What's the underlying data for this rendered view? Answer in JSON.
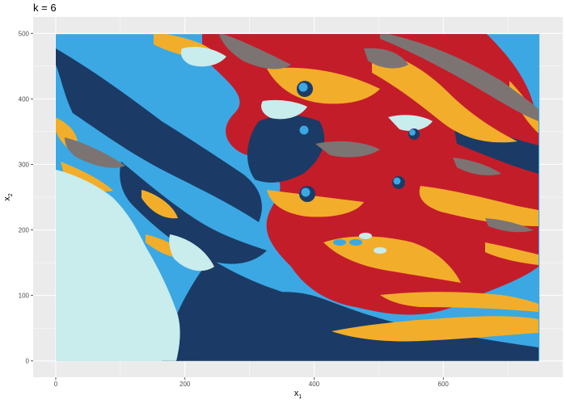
{
  "chart_data": {
    "type": "raster",
    "title": "k = 6",
    "xlabel": "x",
    "xlabel_sub": "1",
    "ylabel": "x",
    "ylabel_sub": "2",
    "xlim": [
      -35,
      785
    ],
    "ylim": [
      -25,
      525
    ],
    "xticks": [
      0,
      200,
      400,
      600
    ],
    "yticks": [
      0,
      100,
      200,
      300,
      400,
      500
    ],
    "raster_extent": {
      "x": [
        0,
        749
      ],
      "y": [
        0,
        499
      ]
    },
    "palette": [
      "#3ba8e4",
      "#c41d2a",
      "#1b3b66",
      "#f2ae2a",
      "#c9ecec",
      "#7b7473"
    ],
    "cluster_count": 6,
    "grid": true,
    "panel_background": "#ebebeb"
  }
}
